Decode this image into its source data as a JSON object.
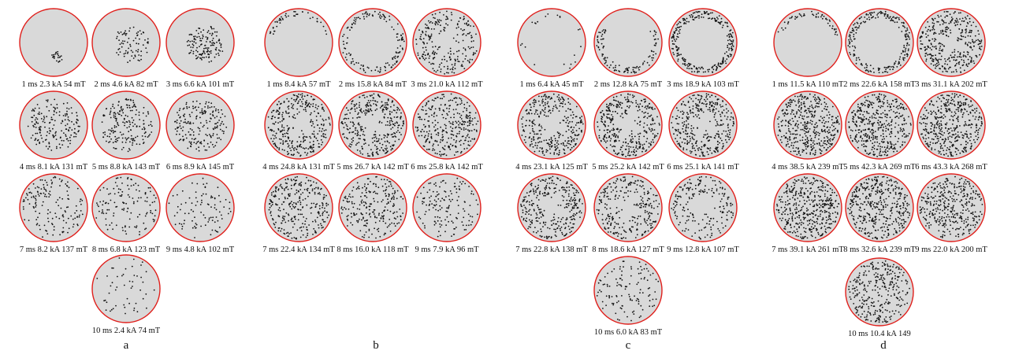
{
  "colors": {
    "circle_fill": "#d9d9d9",
    "circle_stroke": "#e0201c",
    "dot": "#111111",
    "text": "#111111"
  },
  "panels": [
    {
      "id": "a",
      "label": "a",
      "frames": [
        {
          "label": "1 ms 2.3 kA 54 mT",
          "density": 0.06,
          "pattern": "cluster-bottom"
        },
        {
          "label": "2 ms 4.6 kA 82 mT",
          "density": 0.18,
          "pattern": "cluster-right"
        },
        {
          "label": "3 ms 6.6 kA 101 mT",
          "density": 0.32,
          "pattern": "cluster-right"
        },
        {
          "label": "4 ms 8.1 kA 131 mT",
          "density": 0.42,
          "pattern": "center"
        },
        {
          "label": "5 ms 8.8 kA 143 mT",
          "density": 0.45,
          "pattern": "center"
        },
        {
          "label": "6 ms 8.9 kA 145 mT",
          "density": 0.45,
          "pattern": "center"
        },
        {
          "label": "7 ms 8.2 kA 137 mT",
          "density": 0.36,
          "pattern": "uniform"
        },
        {
          "label": "8 ms 6.8 kA 123 mT",
          "density": 0.3,
          "pattern": "uniform"
        },
        {
          "label": "9 ms 4.8 kA 102 mT",
          "density": 0.22,
          "pattern": "uniform"
        },
        {
          "label": "10 ms 2.4 kA 74 mT",
          "density": 0.12,
          "pattern": "uniform"
        }
      ]
    },
    {
      "id": "b",
      "label": "b",
      "frames": [
        {
          "label": "1 ms 8.4 kA 57 mT",
          "density": 0.1,
          "pattern": "rim-top"
        },
        {
          "label": "2 ms 15.8 kA 84 mT",
          "density": 0.32,
          "pattern": "rim"
        },
        {
          "label": "3 ms 21.0 kA 112 mT",
          "density": 0.55,
          "pattern": "ring"
        },
        {
          "label": "4 ms 24.8 kA 131 mT",
          "density": 0.75,
          "pattern": "ring"
        },
        {
          "label": "5 ms 26.7 kA 142 mT",
          "density": 0.78,
          "pattern": "ring"
        },
        {
          "label": "6 ms 25.8 kA 142 mT",
          "density": 0.72,
          "pattern": "uniform"
        },
        {
          "label": "7 ms 22.4 kA 134 mT",
          "density": 0.68,
          "pattern": "uniform"
        },
        {
          "label": "8 ms 16.0 kA 118 mT",
          "density": 0.55,
          "pattern": "uniform"
        },
        {
          "label": "9 ms 7.9 kA 96 mT",
          "density": 0.35,
          "pattern": "uniform"
        }
      ]
    },
    {
      "id": "c",
      "label": "c",
      "frames": [
        {
          "label": "1 ms 6.4 kA 45 mT",
          "density": 0.05,
          "pattern": "rim"
        },
        {
          "label": "2 ms 12.8 kA 75 mT",
          "density": 0.25,
          "pattern": "rim-bottom"
        },
        {
          "label": "3 ms 18.9 kA 103 mT",
          "density": 0.6,
          "pattern": "rim"
        },
        {
          "label": "4 ms 23.1 kA 125 mT",
          "density": 0.75,
          "pattern": "ring"
        },
        {
          "label": "5 ms 25.2 kA 142 mT",
          "density": 0.82,
          "pattern": "ring"
        },
        {
          "label": "6 ms 25.1 kA 141 mT",
          "density": 0.8,
          "pattern": "ring"
        },
        {
          "label": "7 ms 22.8 kA 138 mT",
          "density": 0.72,
          "pattern": "ring"
        },
        {
          "label": "8 ms 18.6 kA 127 mT",
          "density": 0.62,
          "pattern": "ring"
        },
        {
          "label": "9 ms 12.8 kA 107 mT",
          "density": 0.45,
          "pattern": "ring"
        },
        {
          "label": "10 ms 6.0 kA 83 mT",
          "density": 0.28,
          "pattern": "uniform"
        }
      ]
    },
    {
      "id": "d",
      "label": "d",
      "frames": [
        {
          "label": "1 ms 11.5 kA 110 mT",
          "density": 0.12,
          "pattern": "rim-top"
        },
        {
          "label": "2 ms 22.6 kA 158 mT",
          "density": 0.5,
          "pattern": "rim"
        },
        {
          "label": "3 ms 31.1 kA 202 mT",
          "density": 0.82,
          "pattern": "ring"
        },
        {
          "label": "4 ms 38.5 kA 239 mT",
          "density": 1.0,
          "pattern": "uniform"
        },
        {
          "label": "5 ms 42.3 kA 269 mT",
          "density": 1.0,
          "pattern": "uniform"
        },
        {
          "label": "6 ms 43.3 kA 268 mT",
          "density": 1.0,
          "pattern": "uniform"
        },
        {
          "label": "7 ms 39.1 kA 261 mT",
          "density": 1.0,
          "pattern": "uniform"
        },
        {
          "label": "8 ms 32.6 kA 239 mT",
          "density": 0.95,
          "pattern": "uniform"
        },
        {
          "label": "9 ms 22.0 kA 200 mT",
          "density": 0.85,
          "pattern": "uniform"
        },
        {
          "label": "10 ms 10.4 kA 149",
          "density": 0.72,
          "pattern": "uniform"
        }
      ]
    }
  ]
}
